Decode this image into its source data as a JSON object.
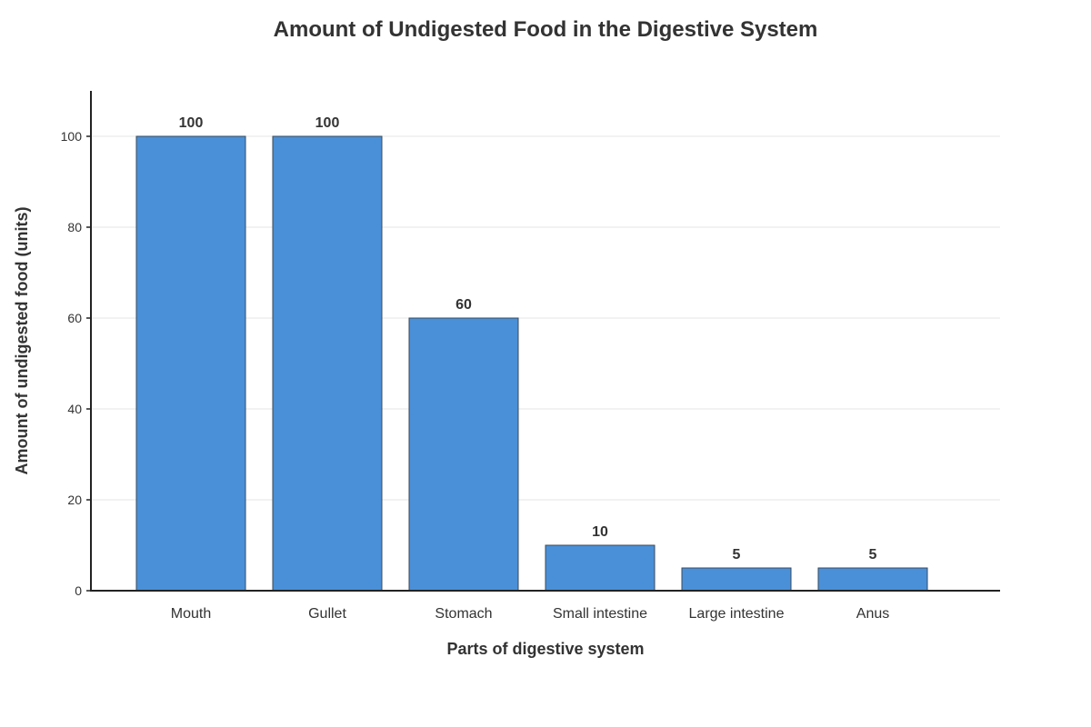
{
  "chart_data": {
    "type": "bar",
    "title": "Amount of Undigested Food in the Digestive System",
    "xlabel": "Parts of digestive system",
    "ylabel": "Amount of undigested food (units)",
    "categories": [
      "Mouth",
      "Gullet",
      "Stomach",
      "Small intestine",
      "Large intestine",
      "Anus"
    ],
    "values": [
      100,
      100,
      60,
      10,
      5,
      5
    ],
    "ylim": [
      0,
      110
    ],
    "yticks": [
      0,
      20,
      40,
      60,
      80,
      100
    ],
    "grid": "horizontal",
    "legend": "none",
    "colors": {
      "bar": "#4a90d9",
      "bar_border": "#3a4a5a",
      "text": "#333333",
      "axis": "#222222",
      "grid": "#e5e5e5"
    }
  }
}
